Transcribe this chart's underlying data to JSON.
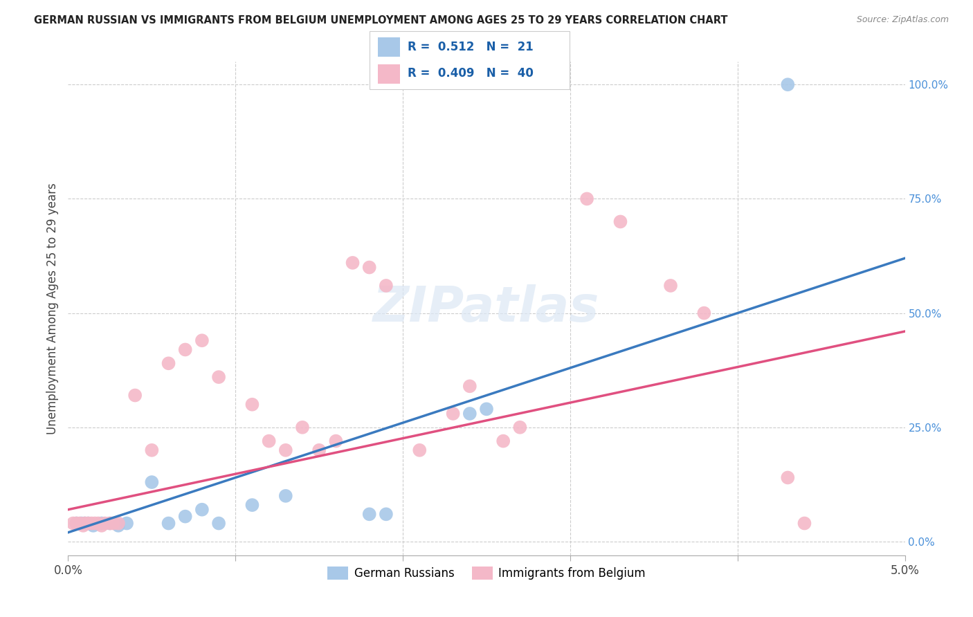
{
  "title": "GERMAN RUSSIAN VS IMMIGRANTS FROM BELGIUM UNEMPLOYMENT AMONG AGES 25 TO 29 YEARS CORRELATION CHART",
  "source": "Source: ZipAtlas.com",
  "ylabel": "Unemployment Among Ages 25 to 29 years",
  "ylabel_right_ticks": [
    "100.0%",
    "75.0%",
    "50.0%",
    "25.0%",
    "0.0%"
  ],
  "ylabel_right_vals": [
    1.0,
    0.75,
    0.5,
    0.25,
    0.0
  ],
  "legend_blue_r": "0.512",
  "legend_blue_n": "21",
  "legend_pink_r": "0.409",
  "legend_pink_n": "40",
  "legend_blue_label": "German Russians",
  "legend_pink_label": "Immigrants from Belgium",
  "blue_color": "#a8c8e8",
  "pink_color": "#f4b8c8",
  "blue_line_color": "#3a7abf",
  "pink_line_color": "#e05080",
  "blue_scatter_x": [
    0.0005,
    0.0008,
    0.001,
    0.0012,
    0.0015,
    0.002,
    0.0025,
    0.003,
    0.0035,
    0.005,
    0.006,
    0.007,
    0.008,
    0.009,
    0.011,
    0.013,
    0.018,
    0.019,
    0.024,
    0.025,
    0.043
  ],
  "blue_scatter_y": [
    0.04,
    0.04,
    0.04,
    0.04,
    0.035,
    0.04,
    0.04,
    0.035,
    0.04,
    0.13,
    0.04,
    0.055,
    0.07,
    0.04,
    0.08,
    0.1,
    0.06,
    0.06,
    0.28,
    0.29,
    1.0
  ],
  "pink_scatter_x": [
    0.0003,
    0.0005,
    0.0007,
    0.0009,
    0.001,
    0.0012,
    0.0014,
    0.0016,
    0.0018,
    0.002,
    0.0022,
    0.0025,
    0.0027,
    0.003,
    0.004,
    0.005,
    0.006,
    0.007,
    0.008,
    0.009,
    0.011,
    0.012,
    0.013,
    0.014,
    0.015,
    0.016,
    0.017,
    0.018,
    0.019,
    0.021,
    0.023,
    0.024,
    0.026,
    0.027,
    0.031,
    0.033,
    0.036,
    0.038,
    0.043,
    0.044
  ],
  "pink_scatter_y": [
    0.04,
    0.04,
    0.04,
    0.035,
    0.04,
    0.04,
    0.04,
    0.04,
    0.04,
    0.035,
    0.04,
    0.04,
    0.04,
    0.04,
    0.32,
    0.2,
    0.39,
    0.42,
    0.44,
    0.36,
    0.3,
    0.22,
    0.2,
    0.25,
    0.2,
    0.22,
    0.61,
    0.6,
    0.56,
    0.2,
    0.28,
    0.34,
    0.22,
    0.25,
    0.75,
    0.7,
    0.56,
    0.5,
    0.14,
    0.04
  ],
  "xmin": 0.0,
  "xmax": 0.05,
  "ymin": -0.03,
  "ymax": 1.05,
  "blue_line_x0": 0.0,
  "blue_line_y0": 0.02,
  "blue_line_x1": 0.05,
  "blue_line_y1": 0.62,
  "pink_line_x0": 0.0,
  "pink_line_y0": 0.07,
  "pink_line_x1": 0.05,
  "pink_line_y1": 0.46
}
